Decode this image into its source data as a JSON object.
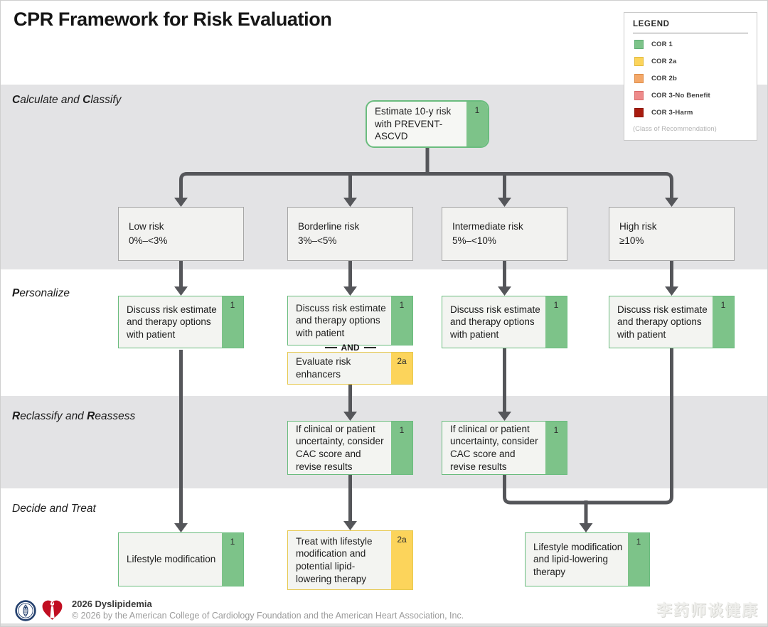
{
  "title": "CPR Framework for Risk Evaluation",
  "legend": {
    "title": "LEGEND",
    "note": "(Class of Recommendation)",
    "items": [
      {
        "label": "COR 1",
        "color": "#7dc389",
        "border": "#5fae74"
      },
      {
        "label": "COR 2a",
        "color": "#fcd45b",
        "border": "#e0ba3e"
      },
      {
        "label": "COR 2b",
        "color": "#f4a869",
        "border": "#dd8c47"
      },
      {
        "label": "COR 3-No Benefit",
        "color": "#ee8b8b",
        "border": "#d96c6c"
      },
      {
        "label": "COR 3-Harm",
        "color": "#a81b0e",
        "border": "#8d1409"
      }
    ]
  },
  "stages": [
    {
      "id": "calculate",
      "label_parts": [
        [
          "C",
          true
        ],
        [
          "alculate and ",
          false
        ],
        [
          "C",
          true
        ],
        [
          "lassify",
          false
        ]
      ]
    },
    {
      "id": "personalize",
      "label_parts": [
        [
          "P",
          true
        ],
        [
          "ersonalize",
          false
        ]
      ]
    },
    {
      "id": "reclassify",
      "label_parts": [
        [
          "R",
          true
        ],
        [
          "eclassify and ",
          false
        ],
        [
          "R",
          true
        ],
        [
          "eassess",
          false
        ]
      ]
    },
    {
      "id": "decide",
      "label_parts": [
        [
          "Decide and Treat",
          false
        ]
      ]
    }
  ],
  "nodes": {
    "estimate": {
      "text": "Estimate 10-y risk with PREVENT-ASCVD",
      "cor": "1"
    },
    "risk_low": {
      "title": "Low risk",
      "range": "0%–<3%"
    },
    "risk_borderline": {
      "title": "Borderline risk",
      "range": "3%–<5%"
    },
    "risk_intermediate": {
      "title": "Intermediate risk",
      "range": "5%–<10%"
    },
    "risk_high": {
      "title": "High risk",
      "range": "≥10%"
    },
    "discuss": {
      "text": "Discuss risk estimate and therapy options with patient",
      "cor": "1"
    },
    "and_connector": "AND",
    "evaluate": {
      "text": "Evaluate risk enhancers",
      "cor": "2a"
    },
    "cac": {
      "text": "If clinical or patient uncertainty, consider CAC score and revise results",
      "cor": "1"
    },
    "lifestyle": {
      "text": "Lifestyle modification",
      "cor": "1"
    },
    "treat": {
      "text": "Treat with lifestyle modification and potential lipid-lowering therapy",
      "cor": "2a"
    },
    "lifestyle_lipid": {
      "text": "Lifestyle modification and lipid-lowering therapy",
      "cor": "1"
    }
  },
  "footer": {
    "title": "2026 Dyslipidemia",
    "copyright": "© 2026 by the American College of Cardiology Foundation and the American Heart Association, Inc."
  },
  "watermark": "李药师谈健康",
  "colors": {
    "band_gray": "#e3e3e5",
    "arrow": "#55565a",
    "cor1_green": "#7dc389",
    "cor2a_yellow": "#fcd45b",
    "aha_red": "#c10e21",
    "acc_navy": "#24406e"
  }
}
